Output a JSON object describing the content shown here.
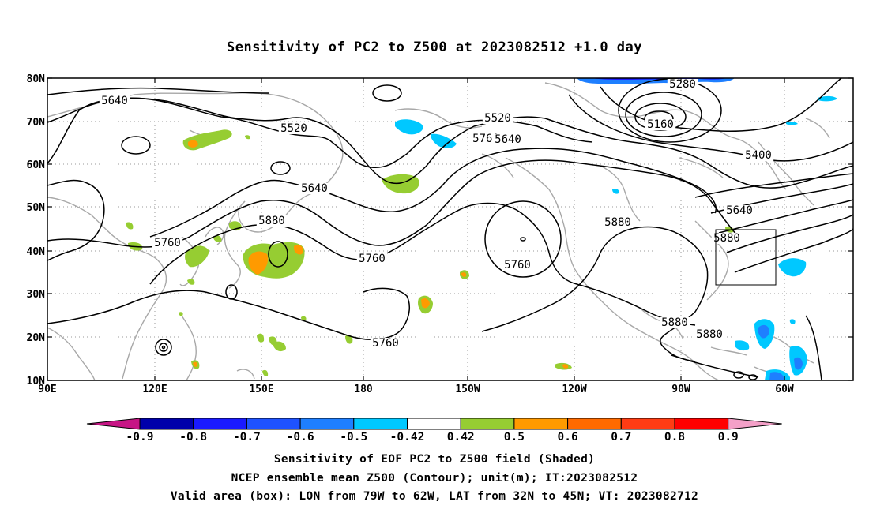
{
  "title": "Sensitivity of PC2 to Z500 at 2023082512 +1.0 day",
  "map": {
    "lat_ticks": [
      "80N",
      "70N",
      "60N",
      "50N",
      "40N",
      "30N",
      "20N",
      "10N"
    ],
    "lon_ticks": [
      "90E",
      "120E",
      "150E",
      "180",
      "150W",
      "120W",
      "90W",
      "60W"
    ],
    "contour_labels": [
      {
        "text": "5640"
      },
      {
        "text": "5520"
      },
      {
        "text": "5520"
      },
      {
        "text": "5640"
      },
      {
        "text": "5760"
      },
      {
        "text": "5280"
      },
      {
        "text": "5160"
      },
      {
        "text": "5400"
      },
      {
        "text": "5640"
      },
      {
        "text": "5640"
      },
      {
        "text": "5880"
      },
      {
        "text": "5760"
      },
      {
        "text": "5760"
      },
      {
        "text": "5760"
      },
      {
        "text": "5880"
      },
      {
        "text": "5760"
      },
      {
        "text": "5880"
      },
      {
        "text": "5880"
      },
      {
        "text": "5880"
      }
    ],
    "valid_box": {
      "lon_from": "79W",
      "lon_to": "62W",
      "lat_from": "32N",
      "lat_to": "45N"
    }
  },
  "colorbar": {
    "labels": [
      "-0.9",
      "-0.8",
      "-0.7",
      "-0.6",
      "-0.5",
      "-0.42",
      "0.42",
      "0.5",
      "0.6",
      "0.7",
      "0.8",
      "0.9"
    ],
    "colors": [
      "#0000aa",
      "#1a1aff",
      "#1e52ff",
      "#1e7fff",
      "#00c8ff",
      "#ffffff",
      "#96cd32",
      "#ff9a00",
      "#ff6a00",
      "#ff3c14",
      "#ff0000"
    ],
    "low_extend_color": "#c71585",
    "high_extend_color": "#f4a0c8"
  },
  "captions": [
    "Sensitivity of EOF PC2 to Z500 field (Shaded)",
    "NCEP ensemble mean Z500 (Contour); unit(m); IT:2023082512",
    "Valid area (box): LON from 79W to 62W, LAT from 32N to 45N; VT: 2023082712"
  ]
}
